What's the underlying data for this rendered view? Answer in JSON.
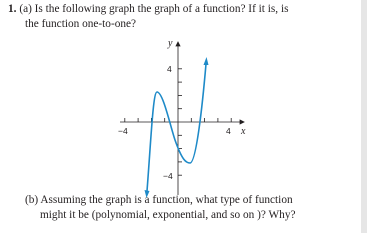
{
  "question": {
    "number": "1.",
    "part_a": [
      "(a) Is the following graph the graph of a function? If it is, is",
      "the function one-to-one?"
    ],
    "part_b": [
      "(b) Assuming the graph is a function, what type of function",
      "might it be (polynomial, exponential, and so on )? Why?"
    ]
  },
  "graph": {
    "x_label": "x",
    "y_label": "y",
    "x_tick_labels": [
      "−4",
      "4"
    ],
    "y_tick_labels": [
      "4",
      "−4"
    ]
  }
}
